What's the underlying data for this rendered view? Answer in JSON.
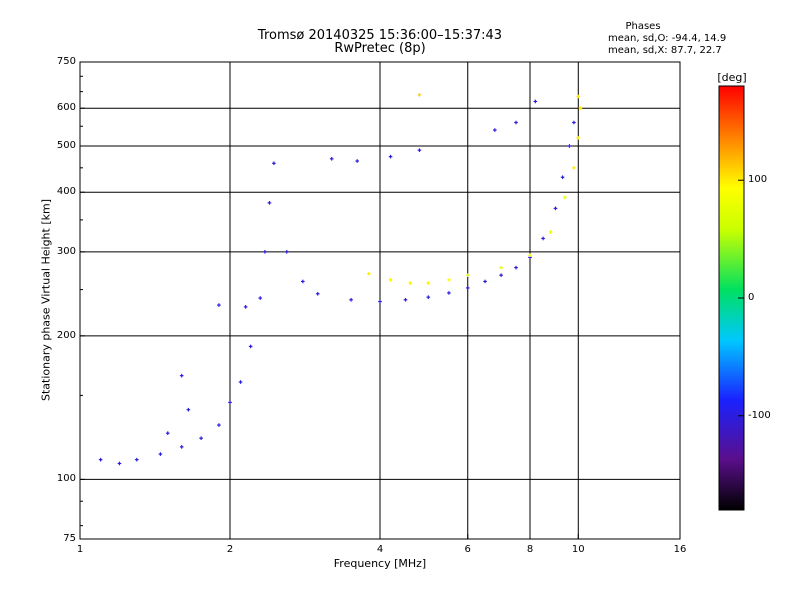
{
  "title_line1": "Tromsø 20140325 15:36:00–15:37:43",
  "title_line2": "RwPretec (8p)",
  "phases": {
    "heading": "Phases",
    "line_o": "mean, sd,O: -94.4, 14.9",
    "line_x": "mean, sd,X: 87.7, 22.7"
  },
  "colorbar": {
    "unit": "[deg]",
    "range": [
      -180,
      180
    ],
    "ticks": [
      100,
      0,
      -100
    ],
    "tick_labels": [
      "100",
      "0",
      "-100"
    ]
  },
  "chart_data": {
    "type": "scatter",
    "title": "Tromsø 20140325 15:36:00–15:37:43",
    "subtitle": "RwPretec (8p)",
    "xlabel": "Frequency [MHz]",
    "ylabel": "Stationary phase Virtual Height [km]",
    "x_scale": "log",
    "y_scale": "log",
    "xlim": [
      1,
      16
    ],
    "ylim": [
      75,
      750
    ],
    "x_ticks": [
      1,
      2,
      4,
      6,
      8,
      10,
      16
    ],
    "x_tick_labels": [
      "1",
      "2",
      "4",
      "6",
      "8",
      "10",
      "16"
    ],
    "y_ticks": [
      75,
      100,
      200,
      300,
      400,
      500,
      600,
      750
    ],
    "y_tick_labels": [
      "75",
      "100",
      "200",
      "300",
      "400",
      "500",
      "600",
      "750"
    ],
    "grid": true,
    "color_scale": "phase [deg], -180 black → violet → blue → cyan → green → yellow → orange → red +180",
    "series": [
      {
        "name": "O",
        "values": [
          {
            "x": 1.1,
            "y": 110,
            "phase": -100
          },
          {
            "x": 1.2,
            "y": 108,
            "phase": -100
          },
          {
            "x": 1.3,
            "y": 110,
            "phase": -100
          },
          {
            "x": 1.45,
            "y": 113,
            "phase": -100
          },
          {
            "x": 1.6,
            "y": 117,
            "phase": -100
          },
          {
            "x": 1.75,
            "y": 122,
            "phase": -100
          },
          {
            "x": 1.9,
            "y": 130,
            "phase": -100
          },
          {
            "x": 2.0,
            "y": 145,
            "phase": -100
          },
          {
            "x": 2.1,
            "y": 160,
            "phase": -100
          },
          {
            "x": 2.2,
            "y": 190,
            "phase": -100
          },
          {
            "x": 2.3,
            "y": 240,
            "phase": -100
          },
          {
            "x": 2.35,
            "y": 300,
            "phase": -100
          },
          {
            "x": 2.4,
            "y": 380,
            "phase": -100
          },
          {
            "x": 2.45,
            "y": 460,
            "phase": -100
          },
          {
            "x": 2.6,
            "y": 300,
            "phase": -100
          },
          {
            "x": 2.8,
            "y": 260,
            "phase": -100
          },
          {
            "x": 3.0,
            "y": 245,
            "phase": -100
          },
          {
            "x": 3.5,
            "y": 238,
            "phase": -100
          },
          {
            "x": 4.0,
            "y": 236,
            "phase": -100
          },
          {
            "x": 4.5,
            "y": 238,
            "phase": -100
          },
          {
            "x": 5.0,
            "y": 241,
            "phase": -100
          },
          {
            "x": 5.5,
            "y": 246,
            "phase": -100
          },
          {
            "x": 6.0,
            "y": 252,
            "phase": -100
          },
          {
            "x": 6.5,
            "y": 260,
            "phase": -100
          },
          {
            "x": 7.0,
            "y": 268,
            "phase": -100
          },
          {
            "x": 7.5,
            "y": 278,
            "phase": -100
          },
          {
            "x": 8.0,
            "y": 292,
            "phase": -100
          },
          {
            "x": 8.5,
            "y": 320,
            "phase": -100
          },
          {
            "x": 9.0,
            "y": 370,
            "phase": -100
          },
          {
            "x": 9.3,
            "y": 430,
            "phase": -100
          },
          {
            "x": 9.6,
            "y": 500,
            "phase": -100
          },
          {
            "x": 9.8,
            "y": 560,
            "phase": -100
          },
          {
            "x": 1.6,
            "y": 165,
            "phase": -100
          },
          {
            "x": 1.65,
            "y": 140,
            "phase": -100
          },
          {
            "x": 1.5,
            "y": 125,
            "phase": -100
          },
          {
            "x": 2.15,
            "y": 230,
            "phase": -100
          },
          {
            "x": 1.9,
            "y": 232,
            "phase": -100
          },
          {
            "x": 3.2,
            "y": 470,
            "phase": -100
          },
          {
            "x": 3.6,
            "y": 465,
            "phase": -100
          },
          {
            "x": 4.2,
            "y": 475,
            "phase": -100
          },
          {
            "x": 4.8,
            "y": 490,
            "phase": -100
          },
          {
            "x": 6.8,
            "y": 540,
            "phase": -100
          },
          {
            "x": 7.5,
            "y": 560,
            "phase": -100
          },
          {
            "x": 8.2,
            "y": 620,
            "phase": -100
          }
        ]
      },
      {
        "name": "X",
        "values": [
          {
            "x": 3.8,
            "y": 270,
            "phase": 100
          },
          {
            "x": 4.2,
            "y": 262,
            "phase": 100
          },
          {
            "x": 4.6,
            "y": 258,
            "phase": 100
          },
          {
            "x": 5.0,
            "y": 258,
            "phase": 100
          },
          {
            "x": 5.5,
            "y": 262,
            "phase": 90
          },
          {
            "x": 6.0,
            "y": 268,
            "phase": 80
          },
          {
            "x": 7.0,
            "y": 278,
            "phase": 80
          },
          {
            "x": 8.0,
            "y": 295,
            "phase": 80
          },
          {
            "x": 8.8,
            "y": 330,
            "phase": 80
          },
          {
            "x": 9.4,
            "y": 390,
            "phase": 80
          },
          {
            "x": 9.8,
            "y": 450,
            "phase": 100
          },
          {
            "x": 10.0,
            "y": 520,
            "phase": 100
          },
          {
            "x": 10.1,
            "y": 600,
            "phase": 100
          },
          {
            "x": 4.8,
            "y": 640,
            "phase": 110
          },
          {
            "x": 10.0,
            "y": 635,
            "phase": 100
          }
        ]
      }
    ]
  }
}
